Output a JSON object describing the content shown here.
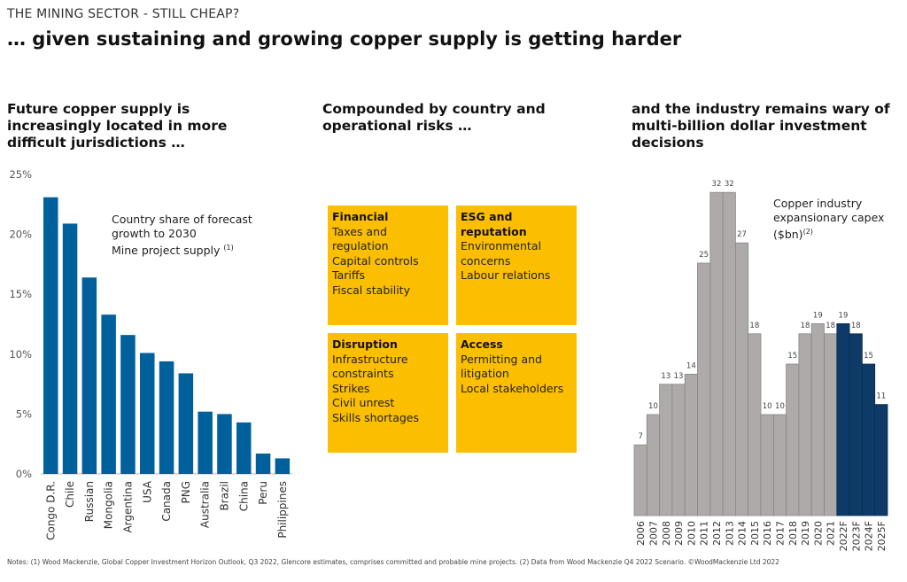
{
  "header": {
    "kicker": "THE MINING SECTOR - STILL CHEAP?",
    "headline": "… given sustaining and growing copper supply is getting harder"
  },
  "sections": {
    "left_heading": "Future copper supply is increasingly located in more difficult jurisdictions …",
    "middle_heading": "Compounded by country and operational risks …",
    "right_heading": "and the industry remains wary of multi-billion dollar investment decisions"
  },
  "risk_boxes": [
    {
      "title": "Financial",
      "items": [
        "Taxes and regulation",
        "Capital controls",
        "Tariffs",
        "Fiscal stability"
      ]
    },
    {
      "title": "ESG and reputation",
      "items": [
        "Environmental concerns",
        "Labour relations"
      ]
    },
    {
      "title": "Disruption",
      "items": [
        "Infrastructure constraints",
        "Strikes",
        "Civil unrest",
        "Skills shortages"
      ]
    },
    {
      "title": "Access",
      "items": [
        "Permitting and litigation",
        "Local stakeholders"
      ]
    }
  ],
  "chart_data": [
    {
      "type": "bar",
      "annotation": [
        "Country share of forecast",
        "growth to 2030",
        "Mine project supply"
      ],
      "annotation_footnote": "(1)",
      "categories": [
        "Congo D.R.",
        "Chile",
        "Russian",
        "Mongolia",
        "Argentina",
        "USA",
        "Canada",
        "PNG",
        "Australia",
        "Brazil",
        "China",
        "Peru",
        "Philippines"
      ],
      "values": [
        23.1,
        20.9,
        16.4,
        13.3,
        11.6,
        10.1,
        9.4,
        8.4,
        5.2,
        5.0,
        4.3,
        1.7,
        1.3
      ],
      "ylim": [
        0,
        25
      ],
      "yticks": [
        "0%",
        "5%",
        "10%",
        "15%",
        "20%",
        "25%"
      ],
      "grid": false,
      "color": "#00609c"
    },
    {
      "type": "bar",
      "annotation": [
        "Copper industry",
        "expansionary capex",
        "($bn)"
      ],
      "annotation_footnote": "(2)",
      "categories": [
        "2006",
        "2007",
        "2008",
        "2009",
        "2010",
        "2011",
        "2012",
        "2013",
        "2014",
        "2015",
        "2016",
        "2017",
        "2018",
        "2019",
        "2020",
        "2021",
        "2022F",
        "2023F",
        "2024F",
        "2025F"
      ],
      "values": [
        7,
        10,
        13,
        13,
        14,
        25,
        32,
        32,
        27,
        18,
        10,
        10,
        15,
        18,
        19,
        18,
        19,
        18,
        15,
        11
      ],
      "forecast_from": "2022F",
      "colors": {
        "actual": "#aeaaaa",
        "forecast": "#0e3a68"
      },
      "grid": false
    }
  ],
  "notes": "Notes: (1) Wood Mackenzie, Global Copper Investment Horizon Outlook, Q3 2022, Glencore estimates, comprises committed and probable mine projects. (2) Data from Wood Mackenzie Q4 2022 Scenario. ©WoodMackenzie Ltd 2022"
}
